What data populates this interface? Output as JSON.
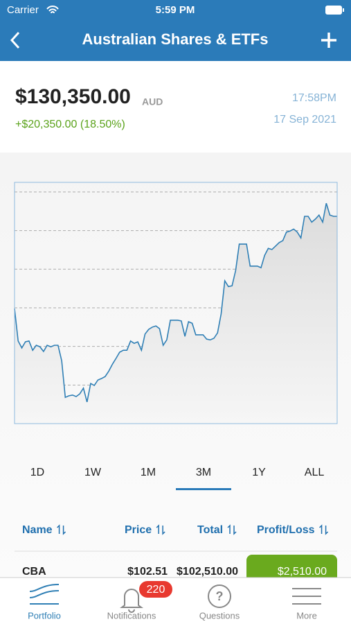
{
  "status": {
    "carrier": "Carrier",
    "time": "5:59 PM"
  },
  "nav": {
    "title": "Australian Shares & ETFs"
  },
  "summary": {
    "value": "$130,350.00",
    "currency": "AUD",
    "change": "+$20,350.00 (18.50%)",
    "time": "17:58PM",
    "date": "17 Sep 2021"
  },
  "chart_data": {
    "type": "line",
    "color": "#2f7fb5",
    "grid": true,
    "ylim": [
      0,
      6.25
    ],
    "yticks": [
      1,
      2,
      3,
      4,
      5,
      6
    ],
    "values": [
      2.98,
      2.14,
      1.96,
      2.12,
      2.14,
      1.9,
      2.03,
      1.99,
      1.87,
      2.03,
      1.99,
      2.03,
      2.03,
      1.63,
      0.68,
      0.72,
      0.74,
      0.7,
      0.77,
      0.92,
      0.56,
      1.04,
      0.99,
      1.13,
      1.17,
      1.22,
      1.36,
      1.54,
      1.69,
      1.85,
      1.9,
      1.9,
      2.14,
      2.08,
      2.12,
      1.9,
      2.32,
      2.44,
      2.5,
      2.53,
      2.46,
      2.03,
      2.17,
      2.68,
      2.68,
      2.68,
      2.66,
      2.26,
      2.64,
      2.6,
      2.3,
      2.3,
      2.3,
      2.19,
      2.17,
      2.21,
      2.35,
      2.84,
      3.7,
      3.55,
      3.57,
      3.97,
      4.65,
      4.65,
      4.65,
      4.08,
      4.08,
      4.08,
      4.04,
      4.36,
      4.54,
      4.51,
      4.6,
      4.69,
      4.74,
      4.96,
      4.99,
      5.04,
      4.96,
      4.81,
      5.37,
      5.37,
      5.22,
      5.3,
      5.4,
      5.22,
      5.71,
      5.4,
      5.37,
      5.37
    ]
  },
  "ranges": {
    "items": [
      "1D",
      "1W",
      "1M",
      "3M",
      "1Y",
      "ALL"
    ],
    "selected": 3
  },
  "table": {
    "columns": [
      "Name",
      "Price",
      "Total",
      "Profit/Loss"
    ],
    "rows": [
      [
        "CBA",
        "$102.51",
        "$102,510.00",
        "$2,510.00"
      ]
    ]
  },
  "tabbar": {
    "items": [
      "Portfolio",
      "Notifications",
      "Questions",
      "More"
    ],
    "badge": "220"
  }
}
